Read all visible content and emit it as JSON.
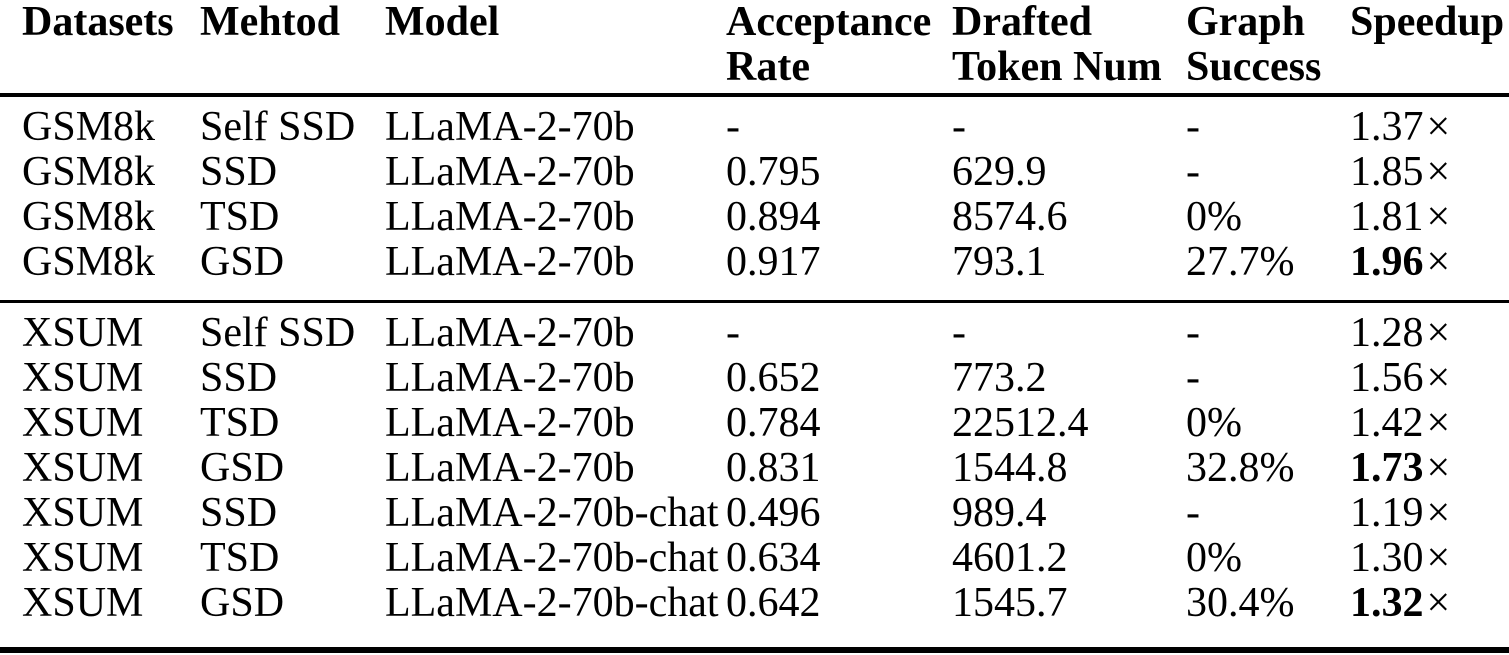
{
  "colors": {
    "background": "#ffffff",
    "text": "#000000",
    "rule": "#000000"
  },
  "table": {
    "columns": [
      "Datasets",
      "Mehtod",
      "Model",
      "Acceptance Rate",
      "Drafted Token Num",
      "Graph Success",
      "Speedup"
    ],
    "times_symbol": "×",
    "groups": [
      {
        "rows": [
          {
            "dataset": "GSM8k",
            "method": "Self SSD",
            "model": "LLaMA-2-70b",
            "acceptance_rate": "-",
            "drafted_token_num": "-",
            "graph_success": "-",
            "speedup": "1.37",
            "speedup_bold": false
          },
          {
            "dataset": "GSM8k",
            "method": "SSD",
            "model": "LLaMA-2-70b",
            "acceptance_rate": "0.795",
            "drafted_token_num": "629.9",
            "graph_success": "-",
            "speedup": "1.85",
            "speedup_bold": false
          },
          {
            "dataset": "GSM8k",
            "method": "TSD",
            "model": "LLaMA-2-70b",
            "acceptance_rate": "0.894",
            "drafted_token_num": "8574.6",
            "graph_success": "0%",
            "speedup": "1.81",
            "speedup_bold": false
          },
          {
            "dataset": "GSM8k",
            "method": "GSD",
            "model": "LLaMA-2-70b",
            "acceptance_rate": "0.917",
            "drafted_token_num": "793.1",
            "graph_success": "27.7%",
            "speedup": "1.96",
            "speedup_bold": true
          }
        ]
      },
      {
        "rows": [
          {
            "dataset": "XSUM",
            "method": "Self SSD",
            "model": "LLaMA-2-70b",
            "acceptance_rate": "-",
            "drafted_token_num": "-",
            "graph_success": "-",
            "speedup": "1.28",
            "speedup_bold": false
          },
          {
            "dataset": "XSUM",
            "method": "SSD",
            "model": "LLaMA-2-70b",
            "acceptance_rate": "0.652",
            "drafted_token_num": "773.2",
            "graph_success": "-",
            "speedup": "1.56",
            "speedup_bold": false
          },
          {
            "dataset": "XSUM",
            "method": "TSD",
            "model": "LLaMA-2-70b",
            "acceptance_rate": "0.784",
            "drafted_token_num": "22512.4",
            "graph_success": "0%",
            "speedup": "1.42",
            "speedup_bold": false
          },
          {
            "dataset": "XSUM",
            "method": "GSD",
            "model": "LLaMA-2-70b",
            "acceptance_rate": "0.831",
            "drafted_token_num": "1544.8",
            "graph_success": "32.8%",
            "speedup": "1.73",
            "speedup_bold": true
          },
          {
            "dataset": "XSUM",
            "method": "SSD",
            "model": "LLaMA-2-70b-chat",
            "acceptance_rate": "0.496",
            "drafted_token_num": "989.4",
            "graph_success": "-",
            "speedup": "1.19",
            "speedup_bold": false
          },
          {
            "dataset": "XSUM",
            "method": "TSD",
            "model": "LLaMA-2-70b-chat",
            "acceptance_rate": "0.634",
            "drafted_token_num": "4601.2",
            "graph_success": "0%",
            "speedup": "1.30",
            "speedup_bold": false
          },
          {
            "dataset": "XSUM",
            "method": "GSD",
            "model": "LLaMA-2-70b-chat",
            "acceptance_rate": "0.642",
            "drafted_token_num": "1545.7",
            "graph_success": "30.4%",
            "speedup": "1.32",
            "speedup_bold": true
          }
        ]
      }
    ]
  }
}
